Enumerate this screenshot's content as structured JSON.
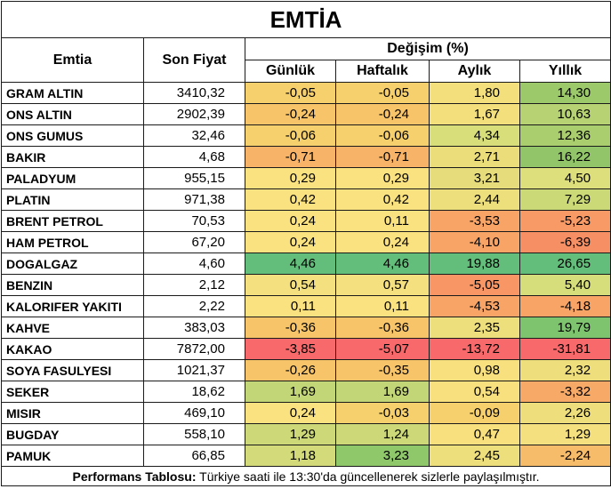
{
  "title": "EMTİA",
  "headers": {
    "commodity": "Emtia",
    "last_price": "Son Fiyat",
    "change_group": "Değişim (%)",
    "daily": "Günlük",
    "weekly": "Haftalık",
    "monthly": "Aylık",
    "yearly": "Yıllık"
  },
  "rows": [
    {
      "name": "GRAM ALTIN",
      "price": "3410,32",
      "daily": "-0,05",
      "weekly": "-0,05",
      "monthly": "1,80",
      "yearly": "14,30",
      "colors": [
        "#f6d06c",
        "#f6d06c",
        "#f3e07c",
        "#9cc96a"
      ]
    },
    {
      "name": "ONS ALTIN",
      "price": "2902,39",
      "daily": "-0,24",
      "weekly": "-0,24",
      "monthly": "1,67",
      "yearly": "10,63",
      "colors": [
        "#f7c46a",
        "#f7c46a",
        "#f3e07c",
        "#b6d272"
      ]
    },
    {
      "name": "ONS GUMUS",
      "price": "32,46",
      "daily": "-0,06",
      "weekly": "-0,06",
      "monthly": "4,34",
      "yearly": "12,36",
      "colors": [
        "#f6d06c",
        "#f6d06c",
        "#d8df7a",
        "#aacd6e"
      ]
    },
    {
      "name": "BAKIR",
      "price": "4,68",
      "daily": "-0,71",
      "weekly": "-0,71",
      "monthly": "2,71",
      "yearly": "16,22",
      "colors": [
        "#f7b468",
        "#f7b468",
        "#eadd7a",
        "#92c569"
      ]
    },
    {
      "name": "PALADYUM",
      "price": "955,15",
      "daily": "0,29",
      "weekly": "0,29",
      "monthly": "3,21",
      "yearly": "4,50",
      "colors": [
        "#fbe281",
        "#fbe281",
        "#e6dc7c",
        "#ddde7c"
      ]
    },
    {
      "name": "PLATIN",
      "price": "971,38",
      "daily": "0,42",
      "weekly": "0,42",
      "monthly": "2,44",
      "yearly": "7,29",
      "colors": [
        "#fbe281",
        "#fbe281",
        "#eddf7c",
        "#cbd977"
      ]
    },
    {
      "name": "BRENT PETROL",
      "price": "70,53",
      "daily": "0,24",
      "weekly": "0,11",
      "monthly": "-3,53",
      "yearly": "-5,23",
      "colors": [
        "#fbe281",
        "#fbe281",
        "#f8a466",
        "#f79a66"
      ]
    },
    {
      "name": "HAM PETROL",
      "price": "67,20",
      "daily": "0,24",
      "weekly": "0,24",
      "monthly": "-4,10",
      "yearly": "-6,39",
      "colors": [
        "#fbe281",
        "#fbe281",
        "#f8a466",
        "#f78f64"
      ]
    },
    {
      "name": "DOGALGAZ",
      "price": "4,60",
      "daily": "4,46",
      "weekly": "4,46",
      "monthly": "19,88",
      "yearly": "26,65",
      "colors": [
        "#63be7b",
        "#63be7b",
        "#63be7b",
        "#63be7b"
      ]
    },
    {
      "name": "BENZIN",
      "price": "2,12",
      "daily": "0,54",
      "weekly": "0,57",
      "monthly": "-5,05",
      "yearly": "5,40",
      "colors": [
        "#f5e07f",
        "#f5e07f",
        "#f89665",
        "#d6dd7b"
      ]
    },
    {
      "name": "KALORIFER YAKITI",
      "price": "2,22",
      "daily": "0,11",
      "weekly": "0,11",
      "monthly": "-4,53",
      "yearly": "-4,18",
      "colors": [
        "#fbe281",
        "#fbe281",
        "#f8a466",
        "#f8a466"
      ]
    },
    {
      "name": "KAHVE",
      "price": "383,03",
      "daily": "-0,36",
      "weekly": "-0,36",
      "monthly": "2,35",
      "yearly": "19,79",
      "colors": [
        "#f7c46a",
        "#f7c46a",
        "#eddf7c",
        "#7ec46f"
      ]
    },
    {
      "name": "KAKAO",
      "price": "7872,00",
      "daily": "-3,85",
      "weekly": "-5,07",
      "monthly": "-13,72",
      "yearly": "-31,81",
      "colors": [
        "#f8696b",
        "#f8696b",
        "#f8696b",
        "#f8696b"
      ]
    },
    {
      "name": "SOYA FASULYESI",
      "price": "1021,37",
      "daily": "-0,26",
      "weekly": "-0,35",
      "monthly": "0,98",
      "yearly": "2,32",
      "colors": [
        "#f7c46a",
        "#f7c46a",
        "#f8e07e",
        "#eedf7c"
      ]
    },
    {
      "name": "SEKER",
      "price": "18,62",
      "daily": "1,69",
      "weekly": "1,69",
      "monthly": "0,54",
      "yearly": "-3,32",
      "colors": [
        "#c2d577",
        "#c2d577",
        "#f8e07e",
        "#f7aa67"
      ]
    },
    {
      "name": "MISIR",
      "price": "469,10",
      "daily": "0,24",
      "weekly": "-0,03",
      "monthly": "-0,09",
      "yearly": "2,26",
      "colors": [
        "#fbe281",
        "#f6d06c",
        "#f6d06c",
        "#eedf7c"
      ]
    },
    {
      "name": "BUGDAY",
      "price": "558,10",
      "daily": "1,29",
      "weekly": "1,24",
      "monthly": "0,47",
      "yearly": "1,29",
      "colors": [
        "#cdd978",
        "#cdd978",
        "#f8e07e",
        "#f4e07e"
      ]
    },
    {
      "name": "PAMUK",
      "price": "66,85",
      "daily": "1,18",
      "weekly": "3,23",
      "monthly": "2,45",
      "yearly": "-2,24",
      "colors": [
        "#d2da79",
        "#8ec86a",
        "#eddf7c",
        "#f7bc69"
      ]
    }
  ],
  "footer": {
    "label": "Performans Tablosu:",
    "text": " Türkiye saati ile 13:30'da güncellenerek sizlerle paylaşılmıştır."
  }
}
